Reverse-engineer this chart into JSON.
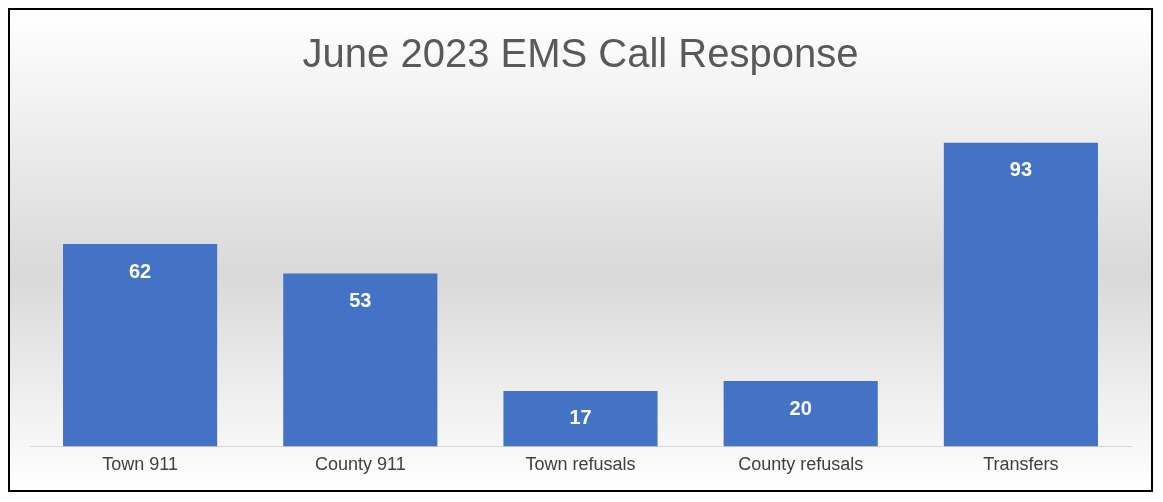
{
  "chart_data": {
    "type": "bar",
    "title": "June 2023 EMS Call Response",
    "categories": [
      "Town 911",
      "County 911",
      "Town refusals",
      "County refusals",
      "Transfers"
    ],
    "values": [
      62,
      53,
      17,
      20,
      93
    ],
    "color": "#4472c4",
    "data_labels": true,
    "grid": false,
    "legend": false,
    "tick_labels": "x"
  }
}
